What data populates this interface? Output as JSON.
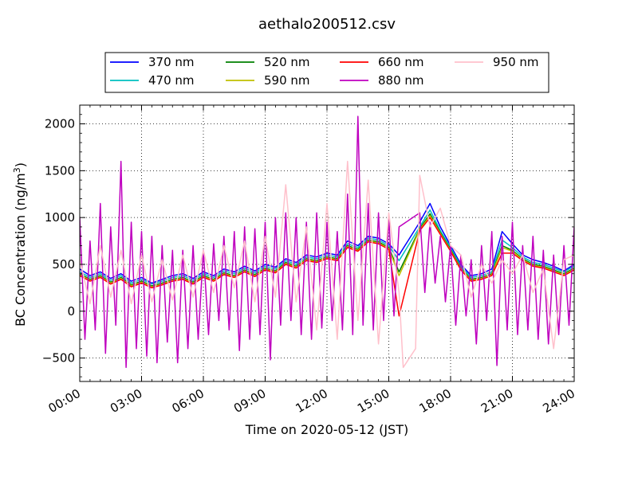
{
  "chart_data": {
    "type": "line",
    "title": "aethalo200512.csv",
    "xlabel": "Time on 2020-05-12 (JST)",
    "ylabel_main": "BC Concentration (ng/m",
    "ylabel_sup": "3",
    "ylabel_close": ")",
    "x_unit": "hours",
    "xlim": [
      0,
      24
    ],
    "ylim": [
      -750,
      2200
    ],
    "xticks": [
      0,
      3,
      6,
      9,
      12,
      15,
      18,
      21,
      24
    ],
    "xtick_labels": [
      "00:00",
      "03:00",
      "06:00",
      "09:00",
      "12:00",
      "15:00",
      "18:00",
      "21:00",
      "24:00"
    ],
    "yticks": [
      -500,
      0,
      500,
      1000,
      1500,
      2000
    ],
    "ytick_labels": [
      "−500",
      "0",
      "500",
      "1000",
      "1500",
      "2000"
    ],
    "grid": true,
    "legend_position": "top-center",
    "data_gap": [
      15.7,
      16.3
    ],
    "series": [
      {
        "name": "370 nm",
        "color": "#0000ff",
        "x": [
          0,
          0.5,
          1,
          1.5,
          2,
          2.5,
          3,
          3.5,
          4,
          4.5,
          5,
          5.5,
          6,
          6.5,
          7,
          7.5,
          8,
          8.5,
          9,
          9.5,
          10,
          10.5,
          11,
          11.5,
          12,
          12.5,
          13,
          13.5,
          14,
          14.5,
          15,
          15.5,
          16.5,
          17,
          17.5,
          18,
          18.5,
          19,
          19.5,
          20,
          20.5,
          21,
          21.5,
          22,
          22.5,
          23,
          23.5,
          24
        ],
        "y": [
          450,
          380,
          420,
          350,
          400,
          320,
          360,
          300,
          340,
          380,
          400,
          350,
          420,
          380,
          450,
          420,
          480,
          430,
          500,
          470,
          560,
          520,
          600,
          580,
          620,
          600,
          750,
          700,
          800,
          780,
          720,
          600,
          950,
          1150,
          900,
          700,
          500,
          380,
          400,
          450,
          850,
          720,
          600,
          550,
          520,
          480,
          430,
          500
        ]
      },
      {
        "name": "470 nm",
        "color": "#00bfbf",
        "x": [
          0,
          0.5,
          1,
          1.5,
          2,
          2.5,
          3,
          3.5,
          4,
          4.5,
          5,
          5.5,
          6,
          6.5,
          7,
          7.5,
          8,
          8.5,
          9,
          9.5,
          10,
          10.5,
          11,
          11.5,
          12,
          12.5,
          13,
          13.5,
          14,
          14.5,
          15,
          15.5,
          16.5,
          17,
          17.5,
          18,
          18.5,
          19,
          19.5,
          20,
          20.5,
          21,
          21.5,
          22,
          22.5,
          23,
          23.5,
          24
        ],
        "y": [
          420,
          360,
          400,
          330,
          380,
          300,
          340,
          290,
          320,
          360,
          380,
          330,
          400,
          360,
          430,
          400,
          460,
          410,
          480,
          450,
          540,
          500,
          580,
          560,
          600,
          580,
          720,
          680,
          780,
          760,
          700,
          540,
          900,
          1080,
          860,
          680,
          480,
          360,
          380,
          420,
          760,
          680,
          580,
          520,
          500,
          460,
          420,
          480
        ]
      },
      {
        "name": "520 nm",
        "color": "#008000",
        "x": [
          0,
          0.5,
          1,
          1.5,
          2,
          2.5,
          3,
          3.5,
          4,
          4.5,
          5,
          5.5,
          6,
          6.5,
          7,
          7.5,
          8,
          8.5,
          9,
          9.5,
          10,
          10.5,
          11,
          11.5,
          12,
          12.5,
          13,
          13.5,
          14,
          14.5,
          15,
          15.5,
          16.5,
          17,
          17.5,
          18,
          18.5,
          19,
          19.5,
          20,
          20.5,
          21,
          21.5,
          22,
          22.5,
          23,
          23.5,
          24
        ],
        "y": [
          400,
          340,
          380,
          310,
          360,
          280,
          320,
          270,
          300,
          340,
          360,
          310,
          380,
          340,
          410,
          380,
          440,
          390,
          460,
          430,
          520,
          480,
          560,
          540,
          580,
          560,
          700,
          660,
          760,
          740,
          680,
          420,
          880,
          1040,
          840,
          660,
          460,
          340,
          360,
          400,
          700,
          650,
          560,
          500,
          480,
          440,
          400,
          460
        ]
      },
      {
        "name": "590 nm",
        "color": "#bfbf00",
        "x": [
          0,
          0.5,
          1,
          1.5,
          2,
          2.5,
          3,
          3.5,
          4,
          4.5,
          5,
          5.5,
          6,
          6.5,
          7,
          7.5,
          8,
          8.5,
          9,
          9.5,
          10,
          10.5,
          11,
          11.5,
          12,
          12.5,
          13,
          13.5,
          14,
          14.5,
          15,
          15.5,
          16.5,
          17,
          17.5,
          18,
          18.5,
          19,
          19.5,
          20,
          20.5,
          21,
          21.5,
          22,
          22.5,
          23,
          23.5,
          24
        ],
        "y": [
          390,
          330,
          370,
          300,
          350,
          270,
          310,
          260,
          290,
          330,
          350,
          300,
          370,
          330,
          400,
          370,
          430,
          380,
          450,
          420,
          510,
          470,
          550,
          530,
          570,
          550,
          690,
          650,
          750,
          730,
          670,
          380,
          870,
          1020,
          830,
          650,
          450,
          330,
          350,
          390,
          680,
          640,
          550,
          490,
          470,
          430,
          390,
          450
        ]
      },
      {
        "name": "660 nm",
        "color": "#ff0000",
        "x": [
          0,
          0.5,
          1,
          1.5,
          2,
          2.5,
          3,
          3.5,
          4,
          4.5,
          5,
          5.5,
          6,
          6.5,
          7,
          7.5,
          8,
          8.5,
          9,
          9.5,
          10,
          10.5,
          11,
          11.5,
          12,
          12.5,
          13,
          13.5,
          14,
          14.5,
          15,
          15.5,
          16.5,
          17,
          17.5,
          18,
          18.5,
          19,
          19.5,
          20,
          20.5,
          21,
          21.5,
          22,
          22.5,
          23,
          23.5,
          24
        ],
        "y": [
          380,
          320,
          360,
          290,
          340,
          260,
          300,
          250,
          280,
          320,
          340,
          290,
          360,
          320,
          390,
          360,
          420,
          370,
          440,
          410,
          500,
          460,
          540,
          520,
          560,
          540,
          680,
          640,
          740,
          720,
          660,
          -50,
          860,
          1000,
          820,
          640,
          440,
          320,
          340,
          380,
          620,
          620,
          540,
          480,
          460,
          420,
          380,
          440
        ]
      },
      {
        "name": "880 nm",
        "color": "#bf00bf",
        "x": [
          0,
          0.25,
          0.5,
          0.75,
          1,
          1.25,
          1.5,
          1.75,
          2,
          2.25,
          2.5,
          2.75,
          3,
          3.25,
          3.5,
          3.75,
          4,
          4.25,
          4.5,
          4.75,
          5,
          5.25,
          5.5,
          5.75,
          6,
          6.25,
          6.5,
          6.75,
          7,
          7.25,
          7.5,
          7.75,
          8,
          8.25,
          8.5,
          8.75,
          9,
          9.25,
          9.5,
          9.75,
          10,
          10.25,
          10.5,
          10.75,
          11,
          11.25,
          11.5,
          11.75,
          12,
          12.25,
          12.5,
          12.75,
          13,
          13.25,
          13.5,
          13.75,
          14,
          14.25,
          14.5,
          14.75,
          15,
          15.25,
          15.5,
          16.5,
          16.75,
          17,
          17.25,
          17.5,
          17.75,
          18,
          18.25,
          18.5,
          18.75,
          19,
          19.25,
          19.5,
          19.75,
          20,
          20.25,
          20.5,
          20.75,
          21,
          21.25,
          21.5,
          21.75,
          22,
          22.25,
          22.5,
          22.75,
          23,
          23.25,
          23.5,
          23.75,
          24
        ],
        "y": [
          1000,
          -300,
          750,
          -200,
          1150,
          -450,
          900,
          -150,
          1600,
          -600,
          950,
          -400,
          850,
          -480,
          800,
          -550,
          700,
          -330,
          650,
          -550,
          650,
          -400,
          700,
          -300,
          650,
          -250,
          720,
          -100,
          800,
          -200,
          850,
          -420,
          900,
          -300,
          880,
          -250,
          950,
          -520,
          1000,
          -150,
          1050,
          -100,
          1000,
          -250,
          950,
          -300,
          1050,
          -180,
          950,
          -100,
          850,
          -200,
          1250,
          -250,
          2080,
          -150,
          1150,
          -200,
          1050,
          -100,
          1000,
          -50,
          900,
          1050,
          200,
          950,
          300,
          800,
          100,
          700,
          -150,
          600,
          -50,
          550,
          -350,
          700,
          -100,
          850,
          -580,
          800,
          -200,
          950,
          -250,
          700,
          -200,
          800,
          -300,
          650,
          -350,
          600,
          -250,
          700,
          -150,
          900
        ]
      },
      {
        "name": "950 nm",
        "color": "#ffc0cb",
        "x": [
          0,
          0.5,
          1,
          1.5,
          2,
          2.5,
          3,
          3.5,
          4,
          4.5,
          5,
          5.5,
          6,
          6.5,
          7,
          7.5,
          8,
          8.5,
          9,
          9.5,
          10,
          10.5,
          11,
          11.5,
          12,
          12.5,
          13,
          13.5,
          14,
          14.5,
          15,
          15.5,
          15.7,
          16.3,
          16.5,
          17,
          17.5,
          18,
          18.5,
          19,
          19.5,
          20,
          20.5,
          21,
          21.5,
          22,
          22.5,
          23,
          23.5,
          24
        ],
        "y": [
          550,
          80,
          700,
          150,
          650,
          80,
          600,
          100,
          550,
          120,
          600,
          150,
          650,
          200,
          700,
          250,
          750,
          100,
          800,
          150,
          1350,
          100,
          900,
          -200,
          1150,
          -300,
          1600,
          -100,
          1400,
          -350,
          1050,
          200,
          -600,
          -400,
          1450,
          900,
          1100,
          700,
          600,
          150,
          500,
          300,
          550,
          400,
          600,
          200,
          450,
          -400,
          550,
          600
        ]
      }
    ]
  }
}
